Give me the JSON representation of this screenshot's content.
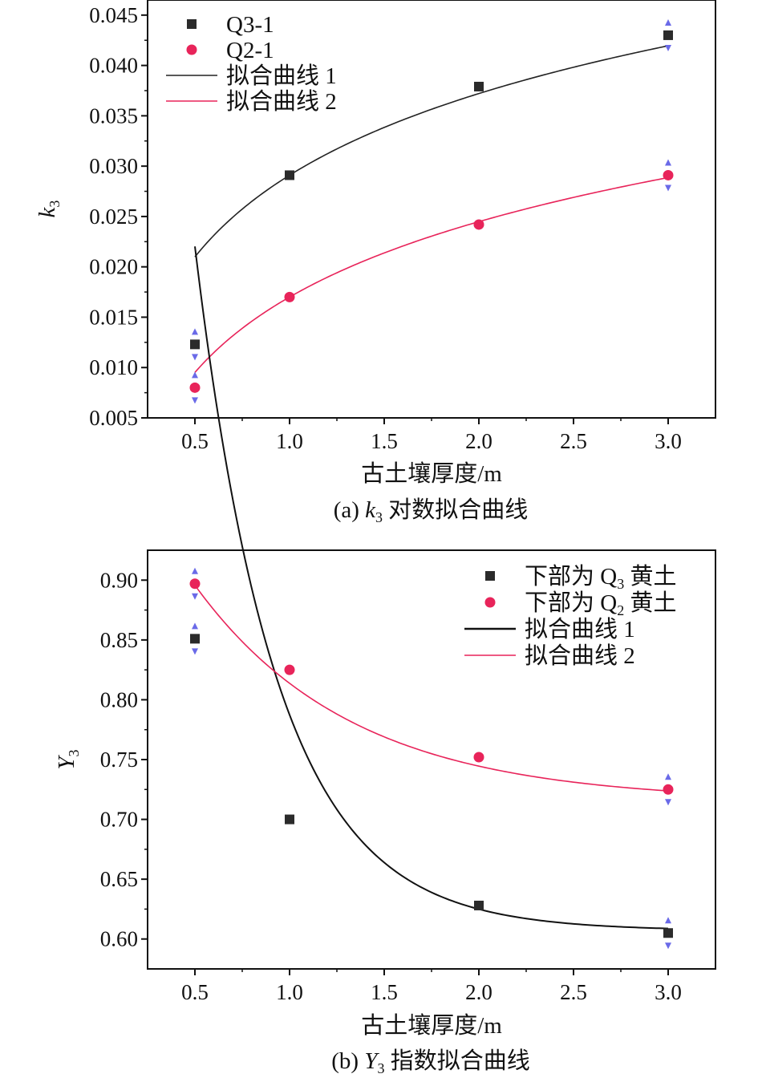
{
  "chart_data": [
    {
      "type": "scatter",
      "caption": {
        "prefix": "(a) ",
        "var": "k",
        "sub": "3",
        "suffix": " 对数拟合曲线"
      },
      "xlabel": "古土壤厚度/m",
      "ylabel": {
        "var": "k",
        "sub": "3"
      },
      "xlim": [
        0.25,
        3.25
      ],
      "ylim": [
        0.005,
        0.0465
      ],
      "xticks": [
        0.5,
        1.0,
        1.5,
        2.0,
        2.5,
        3.0
      ],
      "xtick_labels": [
        "0.5",
        "1.0",
        "1.5",
        "2.0",
        "2.5",
        "3.0"
      ],
      "yticks": [
        0.005,
        0.01,
        0.015,
        0.02,
        0.025,
        0.03,
        0.035,
        0.04,
        0.045
      ],
      "ytick_labels": [
        "0.005",
        "0.010",
        "0.015",
        "0.020",
        "0.025",
        "0.030",
        "0.035",
        "0.040",
        "0.045"
      ],
      "legend_position": "top-left",
      "series": [
        {
          "name": "Q3-1",
          "marker": "square",
          "color": "#2b2b2b",
          "x": [
            0.5,
            1.0,
            2.0,
            3.0
          ],
          "y": [
            0.0123,
            0.0291,
            0.0379,
            0.043
          ]
        },
        {
          "name": "Q2-1",
          "marker": "circle",
          "color": "#e8245a",
          "x": [
            0.5,
            1.0,
            2.0,
            3.0
          ],
          "y": [
            0.008,
            0.017,
            0.0242,
            0.0291
          ]
        }
      ],
      "fits": [
        {
          "name": "拟合曲线 1",
          "color": "#222222",
          "model": "log",
          "a": 0.0291,
          "b": 0.0117
        },
        {
          "name": "拟合曲线 2",
          "color": "#e8245a",
          "model": "log",
          "a": 0.017,
          "b": 0.0108
        }
      ]
    },
    {
      "type": "scatter",
      "caption": {
        "prefix": "(b) ",
        "var": "Y",
        "sub": "3",
        "suffix": " 指数拟合曲线"
      },
      "xlabel": "古土壤厚度/m",
      "ylabel": {
        "var": "Y",
        "sub": "3"
      },
      "xlim": [
        0.25,
        3.25
      ],
      "ylim": [
        0.575,
        0.925
      ],
      "xticks": [
        0.5,
        1.0,
        1.5,
        2.0,
        2.5,
        3.0
      ],
      "xtick_labels": [
        "0.5",
        "1.0",
        "1.5",
        "2.0",
        "2.5",
        "3.0"
      ],
      "yticks": [
        0.6,
        0.65,
        0.7,
        0.75,
        0.8,
        0.85,
        0.9
      ],
      "ytick_labels": [
        "0.60",
        "0.65",
        "0.70",
        "0.75",
        "0.80",
        "0.85",
        "0.90"
      ],
      "legend_position": "top-right",
      "series": [
        {
          "name": {
            "prefix": "下部为 Q",
            "sub": "3",
            "suffix": " 黄土"
          },
          "marker": "square",
          "color": "#2b2b2b",
          "x": [
            0.5,
            1.0,
            2.0,
            3.0
          ],
          "y": [
            0.851,
            0.7,
            0.628,
            0.605
          ]
        },
        {
          "name": {
            "prefix": "下部为 Q",
            "sub": "2",
            "suffix": " 黄土"
          },
          "marker": "circle",
          "color": "#e8245a",
          "x": [
            0.5,
            1.0,
            2.0,
            3.0
          ],
          "y": [
            0.897,
            0.825,
            0.752,
            0.725
          ]
        }
      ],
      "fits": [
        {
          "name": "拟合曲线 1",
          "color": "#111111",
          "model": "exp",
          "y0": 0.607,
          "A": 1.8134,
          "k": 2.3077
        },
        {
          "name": "拟合曲线 2",
          "color": "#e8245a",
          "model": "exp",
          "y0": 0.715,
          "A": 0.3307,
          "k": 1.2084
        }
      ]
    }
  ]
}
